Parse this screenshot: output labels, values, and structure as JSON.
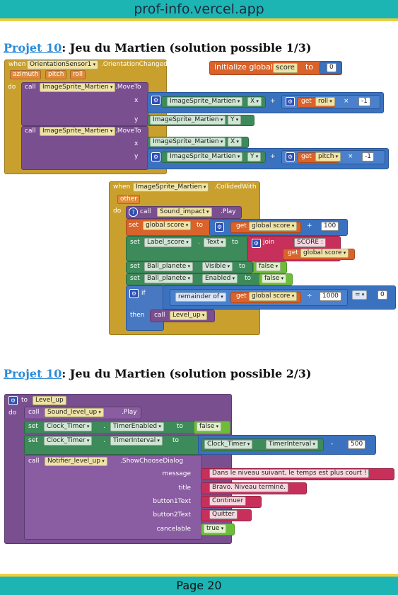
{
  "site": {
    "title": "prof-info.vercel.app"
  },
  "headings": [
    {
      "link": "Projet 10",
      "text": ": Jeu du Martien (solution possible 1/3)"
    },
    {
      "link": "Projet 10",
      "text": ": Jeu du Martien (solution possible 2/3)"
    }
  ],
  "kw": {
    "when": "when",
    "do": "do",
    "call": "call",
    "set": "set",
    "to": "to",
    "if": "if",
    "then": "then",
    "x": "x",
    "y": "y",
    "moveto": ".MoveTo",
    "play": ".Play",
    "get": "get",
    "plus": "+",
    "times": "×",
    "minus": "-",
    "divide": "÷",
    "eq": "=",
    "join": "join",
    "dot": ".",
    "other": "other",
    "azimuth": "azimuth",
    "pitch": "pitch",
    "roll": "roll"
  },
  "block1": {
    "component": "OrientationSensor1",
    "event": ".OrientationChanged",
    "sprite": "ImageSprite_Martien",
    "x": "X",
    "y": "Y",
    "roll_var": "roll",
    "pitch_var": "pitch",
    "neg": "-1"
  },
  "init": {
    "label": "initialize global",
    "name": "score",
    "to": "to",
    "value": "0"
  },
  "block2": {
    "component": "ImageSprite_Martien",
    "event": ".CollidedWith",
    "sound": "Sound_impact",
    "global_score": "global score",
    "add": "100",
    "label": "Label_score",
    "text_prop": "Text",
    "score_text": "SCORE :",
    "ball": "Ball_planete",
    "visible": "Visible",
    "enabled": "Enabled",
    "false_val": "false",
    "remainder": "remainder of",
    "divisor": "1000",
    "zero": "0",
    "proc": "Level_up"
  },
  "block3": {
    "proc": "Level_up",
    "sound": "Sound_level_up",
    "clock": "Clock_Timer",
    "timer_enabled": "TimerEnabled",
    "timer_interval": "TimerInterval",
    "false_val": "false",
    "sub": "500",
    "notifier": "Notifier_level_up",
    "dialog": ".ShowChooseDialog",
    "message_label": "message",
    "title_label": "title",
    "b1_label": "button1Text",
    "b2_label": "button2Text",
    "cancel_label": "cancelable",
    "message": "Dans le niveau suivant, le temps est plus court !",
    "title": "Bravo. Niveau terminé.",
    "b1": "Continuer",
    "b2": "Quitter",
    "cancel": "true"
  },
  "footer": {
    "page": "Page 20"
  }
}
